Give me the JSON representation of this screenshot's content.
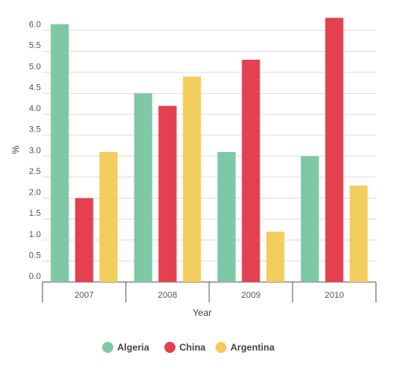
{
  "chart_data": {
    "type": "bar",
    "title": "",
    "xlabel": "Year",
    "ylabel": "%",
    "categories": [
      "2007",
      "2008",
      "2009",
      "2010"
    ],
    "ylim": [
      0,
      6.5
    ],
    "yticks": [
      "0.0",
      "0.5",
      "1.0",
      "1.5",
      "2.0",
      "2.5",
      "3.0",
      "3.5",
      "4.0",
      "4.5",
      "5.0",
      "5.5",
      "6.0"
    ],
    "grid": "horizontal",
    "legend_position": "bottom-center",
    "series": [
      {
        "name": "Algeria",
        "color": "#7ec8a6",
        "values": [
          6.15,
          4.5,
          3.1,
          3.0
        ]
      },
      {
        "name": "China",
        "color": "#e5404f",
        "values": [
          2.0,
          4.2,
          5.3,
          6.3
        ]
      },
      {
        "name": "Argentina",
        "color": "#f2cd5c",
        "values": [
          3.1,
          4.9,
          1.2,
          2.3
        ]
      }
    ]
  }
}
